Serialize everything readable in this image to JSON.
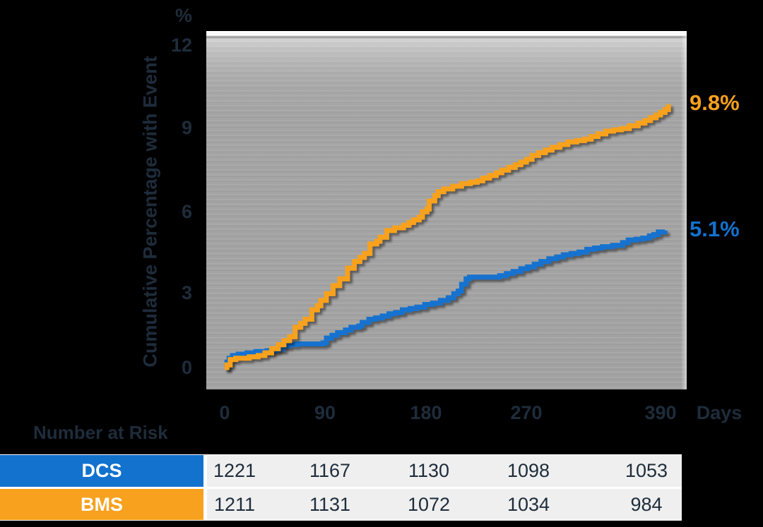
{
  "colors": {
    "dcs_blue": "#1272ce",
    "bms_orange": "#f8a11e",
    "text_navy": "#1e2c3b",
    "plot_gray": "#a2a2a2",
    "table_cell_bg": "#efefef"
  },
  "y_axis": {
    "unit_label": "%",
    "axis_label": "Cumulative Percentage with Event",
    "ticks": [
      "12",
      "9",
      "6",
      "3",
      "0"
    ]
  },
  "x_axis": {
    "ticks": [
      "0",
      "90",
      "180",
      "270",
      "390"
    ],
    "unit_label": "Days"
  },
  "annotations": {
    "bms_end_label": "9.8%",
    "dcs_end_label": "5.1%"
  },
  "risk_table": {
    "title": "Number at Risk",
    "rows": [
      {
        "label": "DCS",
        "values": [
          "1221",
          "1167",
          "1130",
          "1098",
          "1053"
        ]
      },
      {
        "label": "BMS",
        "values": [
          "1211",
          "1131",
          "1072",
          "1034",
          "984"
        ]
      }
    ]
  },
  "chart_data": {
    "type": "line",
    "subtype": "kaplan-meier-step",
    "title": "",
    "xlabel": "Days",
    "ylabel": "Cumulative Percentage with Event (%)",
    "xlim": [
      0,
      413
    ],
    "ylim": [
      0,
      12.6
    ],
    "x_ticks": [
      0,
      90,
      180,
      270,
      390
    ],
    "y_ticks": [
      0,
      3,
      6,
      9,
      12
    ],
    "grid": false,
    "legend_position": "table-left-labels",
    "series": [
      {
        "name": "DCS",
        "color": "#1272ce",
        "end_label": "5.1%",
        "points": [
          [
            0,
            0
          ],
          [
            2,
            0.2
          ],
          [
            4,
            0.35
          ],
          [
            7,
            0.45
          ],
          [
            12,
            0.5
          ],
          [
            20,
            0.55
          ],
          [
            28,
            0.6
          ],
          [
            38,
            0.63
          ],
          [
            46,
            0.68
          ],
          [
            52,
            0.8
          ],
          [
            57,
            0.85
          ],
          [
            64,
            0.88
          ],
          [
            88,
            0.92
          ],
          [
            91,
            1.1
          ],
          [
            96,
            1.2
          ],
          [
            101,
            1.3
          ],
          [
            108,
            1.4
          ],
          [
            113,
            1.5
          ],
          [
            120,
            1.55
          ],
          [
            123,
            1.68
          ],
          [
            129,
            1.8
          ],
          [
            135,
            1.85
          ],
          [
            141,
            1.92
          ],
          [
            147,
            2.0
          ],
          [
            153,
            2.05
          ],
          [
            159,
            2.15
          ],
          [
            166,
            2.2
          ],
          [
            172,
            2.25
          ],
          [
            179,
            2.35
          ],
          [
            186,
            2.4
          ],
          [
            193,
            2.5
          ],
          [
            200,
            2.6
          ],
          [
            205,
            2.75
          ],
          [
            209,
            2.85
          ],
          [
            212,
            3.1
          ],
          [
            216,
            3.3
          ],
          [
            219,
            3.37
          ],
          [
            246,
            3.42
          ],
          [
            252,
            3.5
          ],
          [
            258,
            3.58
          ],
          [
            265,
            3.68
          ],
          [
            271,
            3.75
          ],
          [
            277,
            3.85
          ],
          [
            283,
            3.95
          ],
          [
            290,
            4.05
          ],
          [
            297,
            4.12
          ],
          [
            303,
            4.2
          ],
          [
            310,
            4.25
          ],
          [
            317,
            4.3
          ],
          [
            324,
            4.4
          ],
          [
            331,
            4.45
          ],
          [
            338,
            4.5
          ],
          [
            347,
            4.55
          ],
          [
            356,
            4.65
          ],
          [
            361,
            4.75
          ],
          [
            368,
            4.78
          ],
          [
            374,
            4.82
          ],
          [
            380,
            4.9
          ],
          [
            384,
            4.95
          ],
          [
            388,
            5.05
          ],
          [
            394,
            5.1
          ]
        ]
      },
      {
        "name": "BMS",
        "color": "#f8a11e",
        "end_label": "9.8%",
        "points": [
          [
            0,
            0
          ],
          [
            2,
            0.1
          ],
          [
            5,
            0.3
          ],
          [
            10,
            0.35
          ],
          [
            22,
            0.4
          ],
          [
            30,
            0.45
          ],
          [
            36,
            0.55
          ],
          [
            42,
            0.7
          ],
          [
            48,
            0.85
          ],
          [
            53,
            1.0
          ],
          [
            58,
            1.15
          ],
          [
            63,
            1.5
          ],
          [
            68,
            1.65
          ],
          [
            72,
            1.8
          ],
          [
            78,
            2.15
          ],
          [
            83,
            2.3
          ],
          [
            86,
            2.5
          ],
          [
            91,
            2.75
          ],
          [
            97,
            3.05
          ],
          [
            103,
            3.3
          ],
          [
            110,
            3.7
          ],
          [
            116,
            3.95
          ],
          [
            121,
            4.1
          ],
          [
            125,
            4.25
          ],
          [
            130,
            4.6
          ],
          [
            136,
            4.7
          ],
          [
            139,
            4.85
          ],
          [
            145,
            5.1
          ],
          [
            152,
            5.2
          ],
          [
            160,
            5.3
          ],
          [
            165,
            5.4
          ],
          [
            169,
            5.5
          ],
          [
            174,
            5.6
          ],
          [
            177,
            5.8
          ],
          [
            181,
            5.9
          ],
          [
            183,
            6.2
          ],
          [
            188,
            6.4
          ],
          [
            191,
            6.55
          ],
          [
            196,
            6.65
          ],
          [
            204,
            6.75
          ],
          [
            212,
            6.85
          ],
          [
            220,
            6.9
          ],
          [
            226,
            6.95
          ],
          [
            231,
            7.05
          ],
          [
            237,
            7.15
          ],
          [
            243,
            7.25
          ],
          [
            248,
            7.35
          ],
          [
            254,
            7.45
          ],
          [
            260,
            7.55
          ],
          [
            265,
            7.65
          ],
          [
            270,
            7.75
          ],
          [
            275,
            7.9
          ],
          [
            281,
            8.0
          ],
          [
            287,
            8.1
          ],
          [
            293,
            8.2
          ],
          [
            300,
            8.3
          ],
          [
            307,
            8.4
          ],
          [
            315,
            8.45
          ],
          [
            322,
            8.5
          ],
          [
            328,
            8.6
          ],
          [
            334,
            8.7
          ],
          [
            341,
            8.8
          ],
          [
            348,
            8.85
          ],
          [
            355,
            8.9
          ],
          [
            362,
            9.0
          ],
          [
            370,
            9.1
          ],
          [
            376,
            9.2
          ],
          [
            381,
            9.3
          ],
          [
            386,
            9.4
          ],
          [
            390,
            9.5
          ],
          [
            394,
            9.6
          ],
          [
            397,
            9.8
          ]
        ]
      }
    ],
    "risk_table": {
      "title": "Number at Risk",
      "time_points": [
        0,
        90,
        180,
        270,
        390
      ],
      "DCS": [
        1221,
        1167,
        1130,
        1098,
        1053
      ],
      "BMS": [
        1211,
        1131,
        1072,
        1034,
        984
      ]
    }
  }
}
